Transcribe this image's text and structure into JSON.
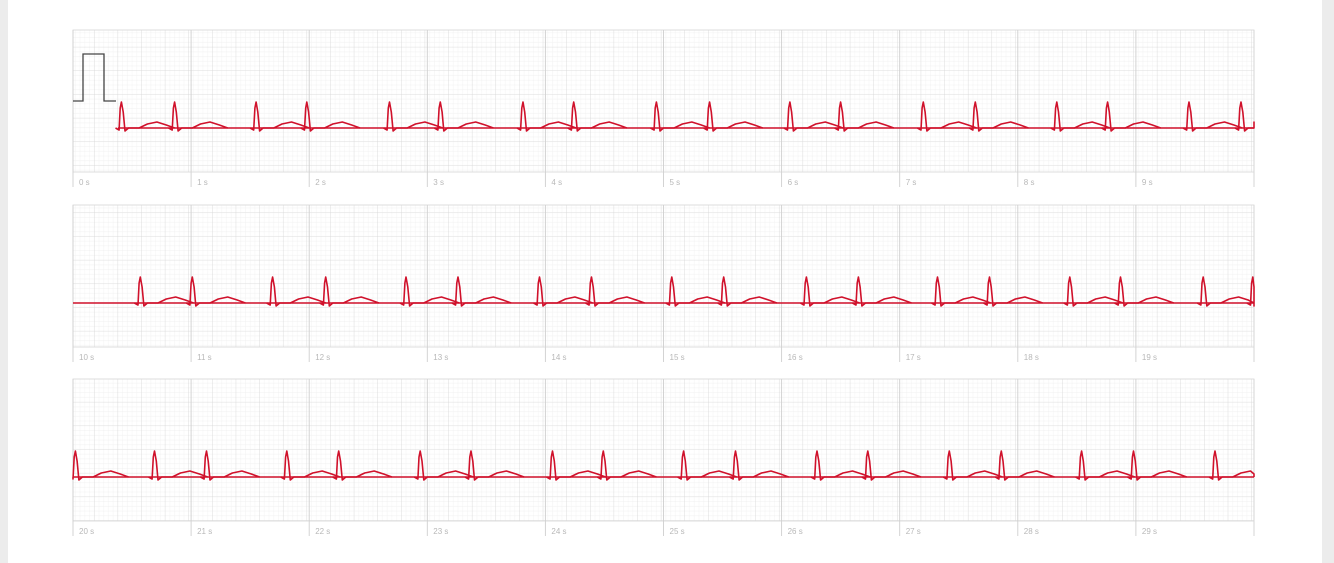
{
  "strips": [
    {
      "xlim": [
        0,
        10
      ],
      "xticks": [
        {
          "value": 0,
          "label": "0 s"
        },
        {
          "value": 1,
          "label": "1 s"
        },
        {
          "value": 2,
          "label": "2 s"
        },
        {
          "value": 3,
          "label": "3 s"
        },
        {
          "value": 4,
          "label": "4 s"
        },
        {
          "value": 5,
          "label": "5 s"
        },
        {
          "value": 6,
          "label": "6 s"
        },
        {
          "value": 7,
          "label": "7 s"
        },
        {
          "value": 8,
          "label": "8 s"
        },
        {
          "value": 9,
          "label": "9 s"
        }
      ],
      "beats": [
        0.41,
        0.86,
        1.55,
        1.98,
        2.68,
        3.11,
        3.81,
        4.24,
        4.94,
        5.39,
        6.07,
        6.5,
        7.2,
        7.64,
        8.33,
        8.76,
        9.45,
        9.89
      ]
    },
    {
      "xlim": [
        10,
        20
      ],
      "xticks": [
        {
          "value": 10,
          "label": "10 s"
        },
        {
          "value": 11,
          "label": "11 s"
        },
        {
          "value": 12,
          "label": "12 s"
        },
        {
          "value": 13,
          "label": "13 s"
        },
        {
          "value": 14,
          "label": "14 s"
        },
        {
          "value": 15,
          "label": "15 s"
        },
        {
          "value": 16,
          "label": "16 s"
        },
        {
          "value": 17,
          "label": "17 s"
        },
        {
          "value": 18,
          "label": "18 s"
        },
        {
          "value": 19,
          "label": "19 s"
        }
      ],
      "beats": [
        10.57,
        11.01,
        11.69,
        12.14,
        12.82,
        13.26,
        13.95,
        14.39,
        15.07,
        15.51,
        16.21,
        16.65,
        17.32,
        17.76,
        18.44,
        18.87,
        19.57,
        19.99
      ]
    },
    {
      "xlim": [
        20,
        30
      ],
      "xticks": [
        {
          "value": 20,
          "label": "20 s"
        },
        {
          "value": 21,
          "label": "21 s"
        },
        {
          "value": 22,
          "label": "22 s"
        },
        {
          "value": 23,
          "label": "23 s"
        },
        {
          "value": 24,
          "label": "24 s"
        },
        {
          "value": 25,
          "label": "25 s"
        },
        {
          "value": 26,
          "label": "26 s"
        },
        {
          "value": 27,
          "label": "27 s"
        },
        {
          "value": 28,
          "label": "28 s"
        },
        {
          "value": 29,
          "label": "29 s"
        }
      ],
      "beats": [
        20.02,
        20.69,
        21.13,
        21.81,
        22.25,
        22.94,
        23.37,
        24.06,
        24.49,
        25.17,
        25.61,
        26.3,
        26.73,
        27.42,
        27.86,
        28.54,
        28.98,
        29.67
      ]
    }
  ]
}
